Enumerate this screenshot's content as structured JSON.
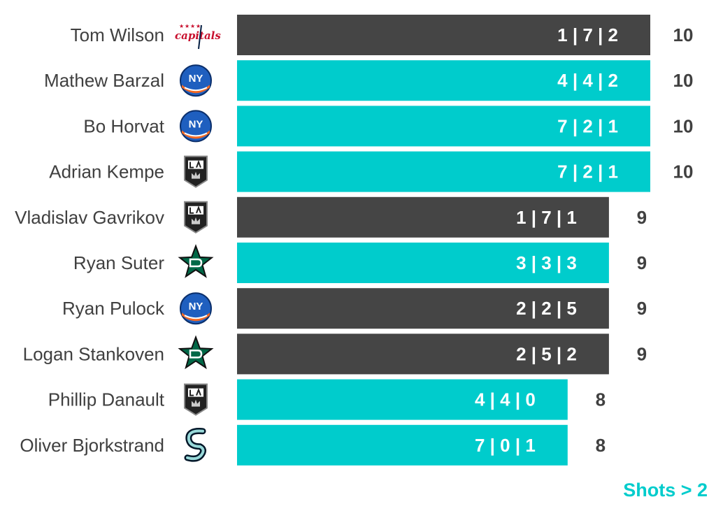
{
  "colors": {
    "dark": "#454545",
    "teal": "#00CCCC",
    "name_text": "#404040",
    "total_text": "#404040",
    "footer": "#00CCCC"
  },
  "footer": "Shots > 2",
  "chart_data": {
    "type": "bar",
    "orientation": "horizontal",
    "xlim": [
      0,
      10
    ],
    "categories": [
      "Tom Wilson",
      "Mathew Barzal",
      "Bo Horvat",
      "Adrian Kempe",
      "Vladislav Gavrikov",
      "Ryan Suter",
      "Ryan Pulock",
      "Logan Stankoven",
      "Phillip Danault",
      "Oliver Bjorkstrand"
    ],
    "teams": [
      "capitals-logo",
      "islanders-logo",
      "islanders-logo",
      "kings-logo",
      "kings-logo",
      "stars-logo",
      "islanders-logo",
      "stars-logo",
      "kings-logo",
      "kraken-logo"
    ],
    "values": [
      10,
      10,
      10,
      10,
      9,
      9,
      9,
      9,
      8,
      8
    ],
    "bar_labels": [
      "1 | 7 | 2",
      "4 | 4 | 2",
      "7 | 2 | 1",
      "7 | 2 | 1",
      "1 | 7 | 1",
      "3 | 3 | 3",
      "2 | 2 | 5",
      "2 | 5 | 2",
      "4 | 4 | 0",
      "7 | 0 | 1"
    ],
    "bar_colors": [
      "dark",
      "teal",
      "teal",
      "teal",
      "dark",
      "teal",
      "dark",
      "dark",
      "teal",
      "teal"
    ],
    "title": "",
    "xlabel": "",
    "ylabel": ""
  }
}
